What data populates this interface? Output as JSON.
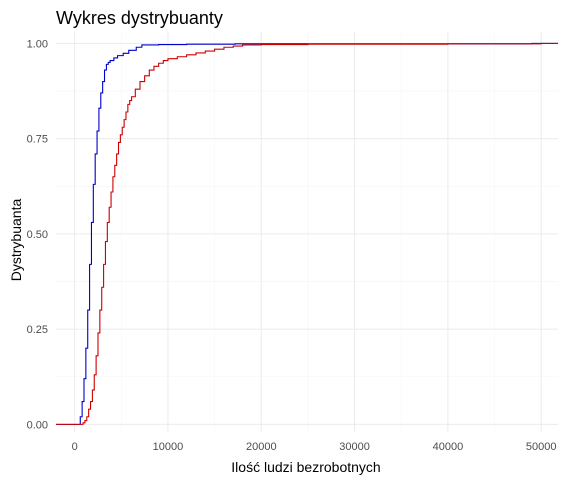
{
  "chart_data": {
    "type": "line",
    "step": true,
    "title": "Wykres dystrybuanty",
    "xlabel": "Ilość ludzi bezrobotnych",
    "ylabel": "Dystrybuanta",
    "xlim": [
      -2000,
      51800
    ],
    "ylim": [
      -0.02,
      1.03
    ],
    "x_ticks": [
      0,
      10000,
      20000,
      30000,
      40000,
      50000
    ],
    "x_tick_labels": [
      "0",
      "10000",
      "20000",
      "30000",
      "40000",
      "50000"
    ],
    "y_ticks": [
      0.0,
      0.25,
      0.5,
      0.75,
      1.0
    ],
    "y_tick_labels": [
      "0.00",
      "0.25",
      "0.50",
      "0.75",
      "1.00"
    ],
    "grid": true,
    "legend": false,
    "series": [
      {
        "color": "#0000cc",
        "x": [
          -2000,
          400,
          600,
          800,
          1000,
          1200,
          1400,
          1600,
          1800,
          2000,
          2200,
          2400,
          2600,
          2800,
          3000,
          3200,
          3400,
          3600,
          3800,
          4200,
          4600,
          5200,
          5800,
          6600,
          7200,
          9000,
          12000,
          16000,
          17200,
          20000,
          30000,
          40000,
          49000,
          51800
        ],
        "y": [
          0.0,
          0.0,
          0.02,
          0.06,
          0.12,
          0.2,
          0.3,
          0.42,
          0.53,
          0.63,
          0.71,
          0.77,
          0.83,
          0.87,
          0.9,
          0.93,
          0.945,
          0.95,
          0.955,
          0.962,
          0.968,
          0.974,
          0.982,
          0.99,
          0.996,
          0.997,
          0.998,
          0.998,
          0.999,
          0.999,
          0.999,
          0.999,
          1.0,
          1.0
        ]
      },
      {
        "color": "#cc0000",
        "x": [
          -2000,
          700,
          900,
          1100,
          1300,
          1500,
          1700,
          1900,
          2100,
          2300,
          2500,
          2700,
          2900,
          3100,
          3300,
          3500,
          3700,
          3900,
          4100,
          4300,
          4500,
          4700,
          4900,
          5100,
          5300,
          5500,
          5700,
          5900,
          6100,
          6500,
          7000,
          7500,
          8000,
          8500,
          9000,
          9500,
          10000,
          11000,
          12000,
          13000,
          14000,
          15000,
          16000,
          17000,
          18000,
          20000,
          25000,
          30000,
          39000,
          40000,
          50000,
          51800
        ],
        "y": [
          0.0,
          0.0,
          0.004,
          0.01,
          0.02,
          0.04,
          0.06,
          0.09,
          0.13,
          0.18,
          0.24,
          0.3,
          0.36,
          0.42,
          0.48,
          0.53,
          0.57,
          0.61,
          0.65,
          0.68,
          0.71,
          0.74,
          0.76,
          0.78,
          0.8,
          0.82,
          0.84,
          0.85,
          0.86,
          0.88,
          0.9,
          0.915,
          0.93,
          0.94,
          0.948,
          0.955,
          0.96,
          0.965,
          0.97,
          0.975,
          0.98,
          0.985,
          0.99,
          0.993,
          0.996,
          0.997,
          0.998,
          0.998,
          0.998,
          0.999,
          1.0,
          1.0
        ]
      }
    ]
  }
}
